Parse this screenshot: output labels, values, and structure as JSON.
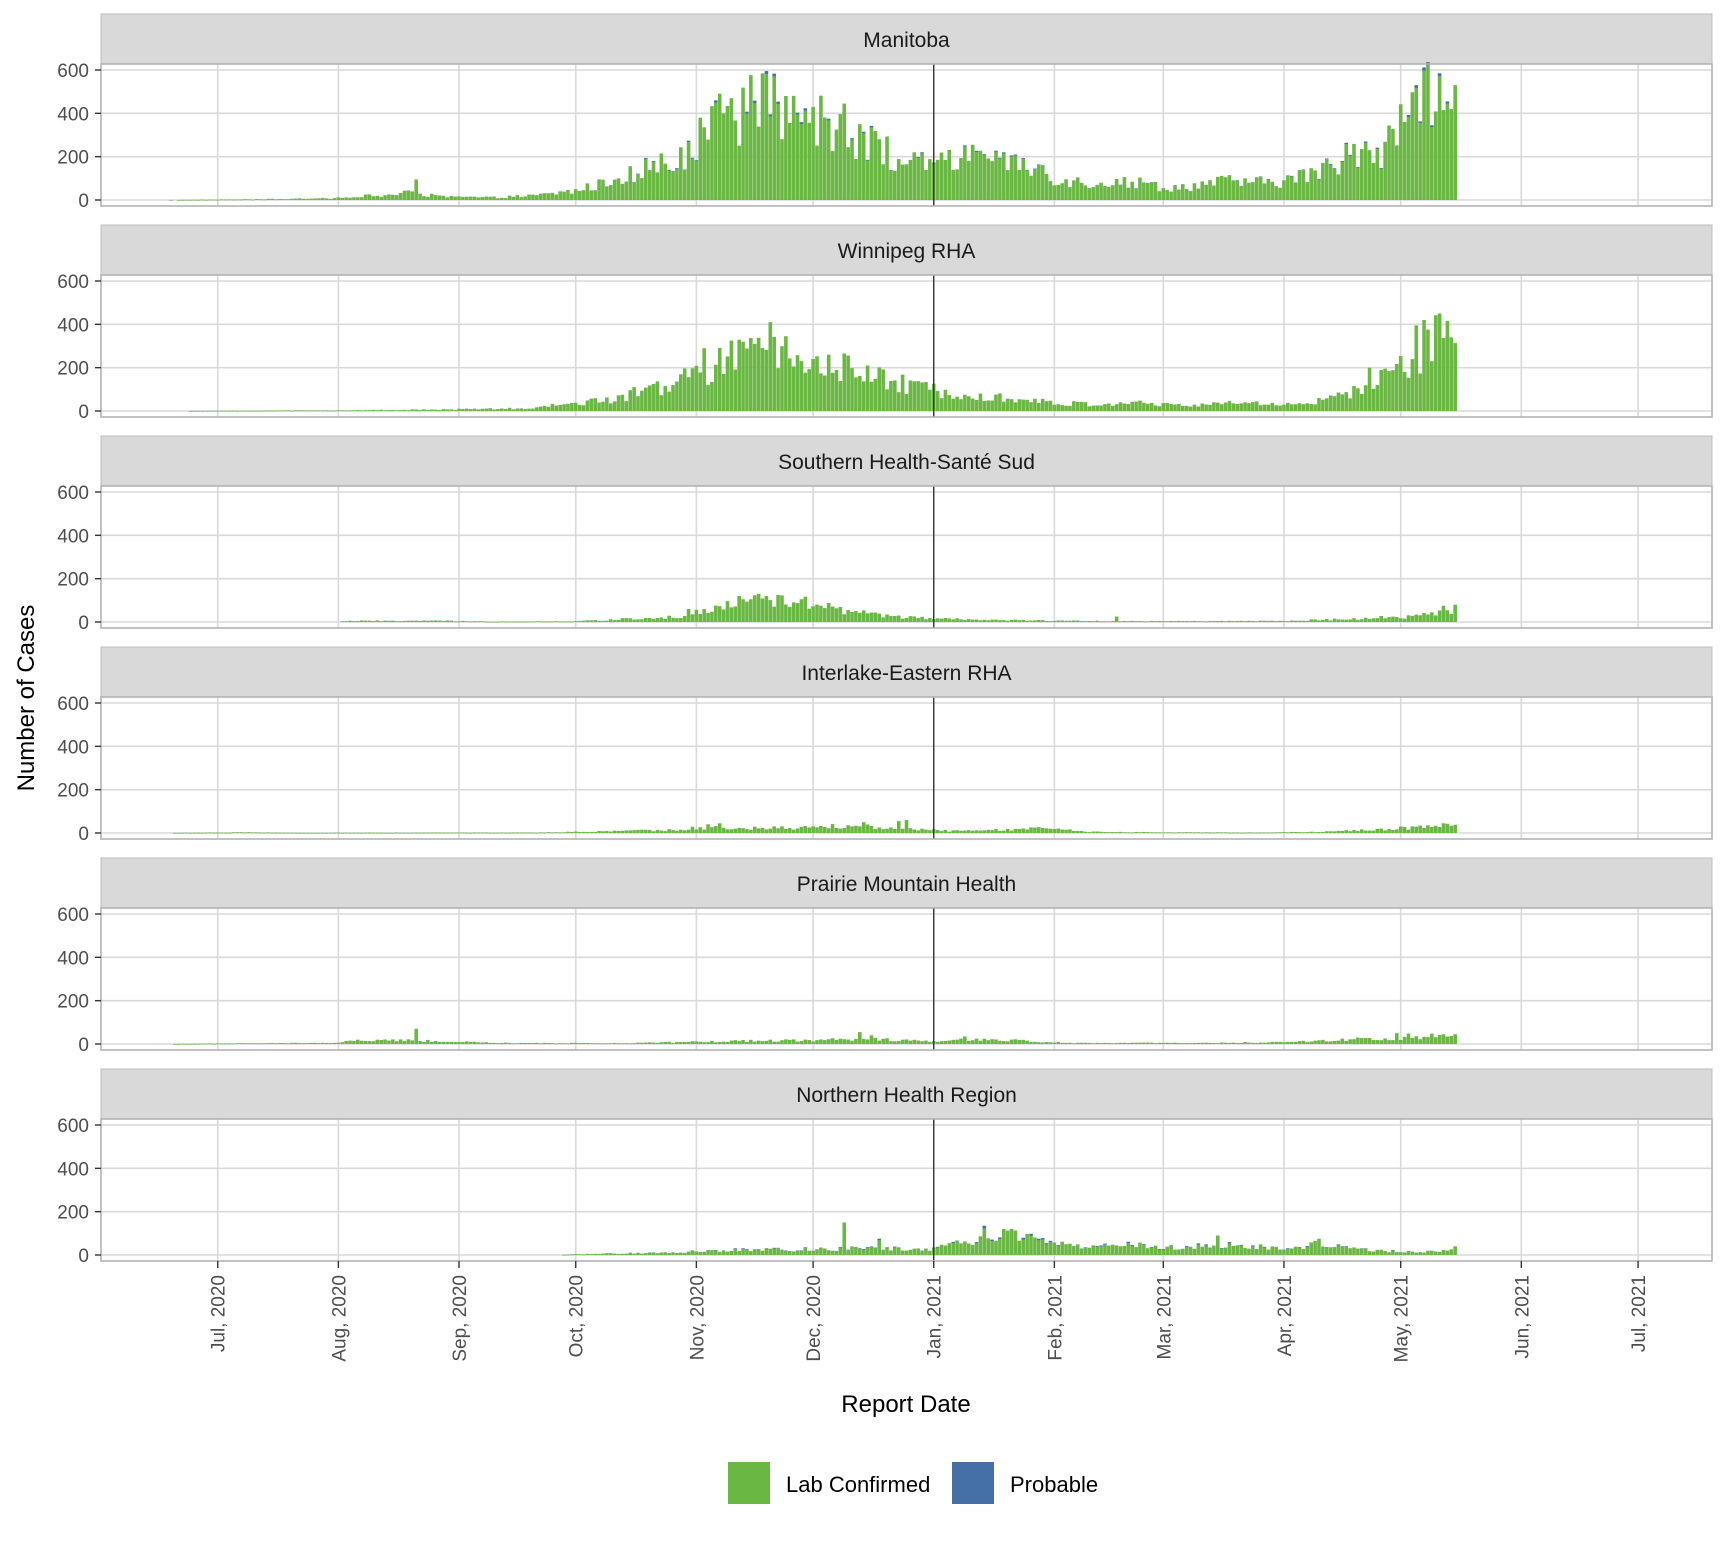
{
  "chart_data": {
    "type": "bar",
    "stacked": true,
    "xlabel": "Report Date",
    "ylabel": "Number of Cases",
    "ylim": [
      0,
      600
    ],
    "y_ticks": [
      0,
      200,
      400,
      600
    ],
    "x_range": [
      "2020-06-01",
      "2021-07-20"
    ],
    "x_ticks": [
      {
        "date": "2020-07-01",
        "label": "Jul, 2020"
      },
      {
        "date": "2020-08-01",
        "label": "Aug, 2020"
      },
      {
        "date": "2020-09-01",
        "label": "Sep, 2020"
      },
      {
        "date": "2020-10-01",
        "label": "Oct, 2020"
      },
      {
        "date": "2020-11-01",
        "label": "Nov, 2020"
      },
      {
        "date": "2020-12-01",
        "label": "Dec, 2020"
      },
      {
        "date": "2021-01-01",
        "label": "Jan, 2021"
      },
      {
        "date": "2021-02-01",
        "label": "Feb, 2021"
      },
      {
        "date": "2021-03-01",
        "label": "Mar, 2021"
      },
      {
        "date": "2021-04-01",
        "label": "Apr, 2021"
      },
      {
        "date": "2021-05-01",
        "label": "May, 2021"
      },
      {
        "date": "2021-06-01",
        "label": "Jun, 2021"
      },
      {
        "date": "2021-07-01",
        "label": "Jul, 2021"
      }
    ],
    "reference_line_date": "2021-01-01",
    "grid": true,
    "legend_position": "bottom",
    "legend": [
      {
        "label": "Lab Confirmed",
        "color": "#6ab743"
      },
      {
        "label": "Probable",
        "color": "#4470a7"
      }
    ],
    "date_start": "2020-06-15",
    "date_end": "2021-05-15",
    "panels": [
      {
        "name": "Manitoba",
        "keypoints": [
          [
            "2020-06-15",
            0
          ],
          [
            "2020-07-10",
            3
          ],
          [
            "2020-07-31",
            8
          ],
          [
            "2020-08-05",
            20
          ],
          [
            "2020-08-12",
            18
          ],
          [
            "2020-08-18",
            35
          ],
          [
            "2020-08-28",
            15
          ],
          [
            "2020-09-10",
            12
          ],
          [
            "2020-09-20",
            20
          ],
          [
            "2020-09-30",
            40
          ],
          [
            "2020-10-08",
            75
          ],
          [
            "2020-10-14",
            120
          ],
          [
            "2020-10-20",
            155
          ],
          [
            "2020-10-26",
            170
          ],
          [
            "2020-11-02",
            300
          ],
          [
            "2020-11-08",
            370
          ],
          [
            "2020-11-14",
            420
          ],
          [
            "2020-11-20",
            430
          ],
          [
            "2020-11-26",
            410
          ],
          [
            "2020-12-02",
            370
          ],
          [
            "2020-12-08",
            330
          ],
          [
            "2020-12-14",
            275
          ],
          [
            "2020-12-20",
            215
          ],
          [
            "2020-12-26",
            165
          ],
          [
            "2021-01-02",
            160
          ],
          [
            "2021-01-07",
            190
          ],
          [
            "2021-01-15",
            170
          ],
          [
            "2021-01-24",
            155
          ],
          [
            "2021-01-31",
            110
          ],
          [
            "2021-02-08",
            80
          ],
          [
            "2021-02-18",
            85
          ],
          [
            "2021-02-25",
            75
          ],
          [
            "2021-03-03",
            55
          ],
          [
            "2021-03-10",
            70
          ],
          [
            "2021-03-18",
            88
          ],
          [
            "2021-03-27",
            78
          ],
          [
            "2021-04-05",
            105
          ],
          [
            "2021-04-12",
            145
          ],
          [
            "2021-04-20",
            225
          ],
          [
            "2021-04-27",
            240
          ],
          [
            "2021-05-03",
            430
          ],
          [
            "2021-05-08",
            510
          ],
          [
            "2021-05-15",
            500
          ]
        ],
        "peaks": [
          [
            "2020-08-21",
            95
          ],
          [
            "2020-10-15",
            155
          ],
          [
            "2020-11-02",
            380
          ],
          [
            "2020-11-06",
            460
          ],
          [
            "2020-11-08",
            400
          ],
          [
            "2020-11-10",
            470
          ],
          [
            "2020-11-19",
            595
          ],
          [
            "2020-11-24",
            480
          ],
          [
            "2020-12-01",
            430
          ],
          [
            "2020-12-05",
            375
          ],
          [
            "2020-12-09",
            445
          ],
          [
            "2020-12-13",
            350
          ],
          [
            "2021-01-04",
            185
          ],
          [
            "2021-01-11",
            255
          ],
          [
            "2021-01-19",
            220
          ],
          [
            "2021-01-22",
            210
          ],
          [
            "2021-01-29",
            160
          ],
          [
            "2021-04-16",
            180
          ],
          [
            "2021-04-22",
            270
          ],
          [
            "2021-05-05",
            530
          ],
          [
            "2021-05-09",
            345
          ],
          [
            "2021-05-11",
            585
          ],
          [
            "2021-05-13",
            455
          ],
          [
            "2021-05-15",
            530
          ]
        ],
        "probable_share": 0.012
      },
      {
        "name": "Winnipeg RHA",
        "keypoints": [
          [
            "2020-06-15",
            0
          ],
          [
            "2020-07-31",
            3
          ],
          [
            "2020-08-15",
            5
          ],
          [
            "2020-09-02",
            8
          ],
          [
            "2020-09-20",
            12
          ],
          [
            "2020-10-01",
            38
          ],
          [
            "2020-10-10",
            55
          ],
          [
            "2020-10-18",
            90
          ],
          [
            "2020-10-26",
            125
          ],
          [
            "2020-11-02",
            180
          ],
          [
            "2020-11-10",
            235
          ],
          [
            "2020-11-18",
            255
          ],
          [
            "2020-11-26",
            240
          ],
          [
            "2020-12-04",
            210
          ],
          [
            "2020-12-12",
            185
          ],
          [
            "2020-12-20",
            140
          ],
          [
            "2020-12-28",
            105
          ],
          [
            "2021-01-02",
            95
          ],
          [
            "2021-01-10",
            85
          ],
          [
            "2021-01-20",
            60
          ],
          [
            "2021-01-30",
            40
          ],
          [
            "2021-02-10",
            30
          ],
          [
            "2021-02-20",
            40
          ],
          [
            "2021-03-05",
            25
          ],
          [
            "2021-03-20",
            38
          ],
          [
            "2021-03-31",
            32
          ],
          [
            "2021-04-10",
            45
          ],
          [
            "2021-04-20",
            90
          ],
          [
            "2021-04-27",
            150
          ],
          [
            "2021-05-04",
            220
          ],
          [
            "2021-05-08",
            330
          ],
          [
            "2021-05-15",
            320
          ]
        ],
        "peaks": [
          [
            "2020-10-16",
            110
          ],
          [
            "2020-10-21",
            125
          ],
          [
            "2020-11-03",
            290
          ],
          [
            "2020-11-10",
            325
          ],
          [
            "2020-11-13",
            320
          ],
          [
            "2020-11-20",
            410
          ],
          [
            "2020-11-24",
            345
          ],
          [
            "2020-12-01",
            240
          ],
          [
            "2020-12-05",
            260
          ],
          [
            "2021-04-23",
            200
          ],
          [
            "2021-05-05",
            395
          ],
          [
            "2021-05-07",
            420
          ],
          [
            "2021-05-09",
            230
          ],
          [
            "2021-05-11",
            450
          ],
          [
            "2021-05-14",
            340
          ]
        ],
        "probable_share": 0
      },
      {
        "name": "Southern Health-Santé Sud",
        "keypoints": [
          [
            "2020-06-15",
            0
          ],
          [
            "2020-08-01",
            0
          ],
          [
            "2020-08-03",
            5
          ],
          [
            "2020-08-25",
            6
          ],
          [
            "2020-09-10",
            2
          ],
          [
            "2020-09-30",
            3
          ],
          [
            "2020-10-10",
            10
          ],
          [
            "2020-10-20",
            20
          ],
          [
            "2020-10-28",
            25
          ],
          [
            "2020-11-02",
            45
          ],
          [
            "2020-11-10",
            75
          ],
          [
            "2020-11-20",
            105
          ],
          [
            "2020-11-28",
            90
          ],
          [
            "2020-12-06",
            62
          ],
          [
            "2020-12-14",
            40
          ],
          [
            "2020-12-22",
            25
          ],
          [
            "2021-01-01",
            15
          ],
          [
            "2021-01-15",
            9
          ],
          [
            "2021-02-01",
            6
          ],
          [
            "2021-02-20",
            4
          ],
          [
            "2021-03-10",
            4
          ],
          [
            "2021-03-31",
            5
          ],
          [
            "2021-04-15",
            12
          ],
          [
            "2021-04-25",
            20
          ],
          [
            "2021-05-05",
            25
          ],
          [
            "2021-05-15",
            60
          ]
        ],
        "peaks": [
          [
            "2020-10-30",
            60
          ],
          [
            "2020-11-12",
            120
          ],
          [
            "2020-11-17",
            130
          ],
          [
            "2020-11-19",
            120
          ],
          [
            "2020-11-22",
            125
          ],
          [
            "2020-12-03",
            75
          ],
          [
            "2021-02-17",
            25
          ],
          [
            "2021-05-12",
            75
          ],
          [
            "2021-05-15",
            80
          ]
        ],
        "probable_share": 0
      },
      {
        "name": "Interlake-Eastern RHA",
        "keypoints": [
          [
            "2020-06-15",
            0
          ],
          [
            "2020-07-08",
            3
          ],
          [
            "2020-07-20",
            1
          ],
          [
            "2020-09-20",
            2
          ],
          [
            "2020-10-10",
            8
          ],
          [
            "2020-10-25",
            14
          ],
          [
            "2020-11-02",
            25
          ],
          [
            "2020-11-15",
            22
          ],
          [
            "2020-11-30",
            25
          ],
          [
            "2020-12-12",
            35
          ],
          [
            "2020-12-25",
            18
          ],
          [
            "2021-01-05",
            10
          ],
          [
            "2021-01-20",
            14
          ],
          [
            "2021-01-30",
            22
          ],
          [
            "2021-02-10",
            6
          ],
          [
            "2021-03-01",
            3
          ],
          [
            "2021-03-25",
            2
          ],
          [
            "2021-04-10",
            5
          ],
          [
            "2021-04-22",
            15
          ],
          [
            "2021-05-05",
            25
          ],
          [
            "2021-05-15",
            38
          ]
        ],
        "peaks": [
          [
            "2020-11-04",
            40
          ],
          [
            "2020-11-07",
            45
          ],
          [
            "2020-12-14",
            50
          ],
          [
            "2020-12-23",
            55
          ],
          [
            "2020-12-25",
            60
          ],
          [
            "2021-01-27",
            25
          ],
          [
            "2021-05-12",
            45
          ],
          [
            "2021-05-15",
            38
          ]
        ],
        "probable_share": 0
      },
      {
        "name": "Prairie Mountain Health",
        "keypoints": [
          [
            "2020-06-15",
            0
          ],
          [
            "2020-07-08",
            3
          ],
          [
            "2020-07-31",
            5
          ],
          [
            "2020-08-05",
            15
          ],
          [
            "2020-08-20",
            16
          ],
          [
            "2020-08-31",
            10
          ],
          [
            "2020-09-15",
            4
          ],
          [
            "2020-10-15",
            4
          ],
          [
            "2020-11-01",
            10
          ],
          [
            "2020-11-15",
            15
          ],
          [
            "2020-12-01",
            18
          ],
          [
            "2020-12-15",
            25
          ],
          [
            "2020-12-31",
            12
          ],
          [
            "2021-01-10",
            20
          ],
          [
            "2021-01-25",
            15
          ],
          [
            "2021-02-05",
            5
          ],
          [
            "2021-03-15",
            5
          ],
          [
            "2021-04-05",
            10
          ],
          [
            "2021-04-20",
            22
          ],
          [
            "2021-05-05",
            32
          ],
          [
            "2021-05-15",
            40
          ]
        ],
        "peaks": [
          [
            "2020-08-21",
            70
          ],
          [
            "2020-12-13",
            55
          ],
          [
            "2020-12-16",
            40
          ],
          [
            "2021-01-09",
            35
          ],
          [
            "2021-04-30",
            50
          ],
          [
            "2021-05-03",
            48
          ],
          [
            "2021-05-15",
            45
          ]
        ],
        "probable_share": 0
      },
      {
        "name": "Northern Health Region",
        "keypoints": [
          [
            "2020-06-15",
            0
          ],
          [
            "2020-09-27",
            0
          ],
          [
            "2020-09-30",
            3
          ],
          [
            "2020-10-15",
            8
          ],
          [
            "2020-10-28",
            12
          ],
          [
            "2020-11-05",
            22
          ],
          [
            "2020-11-20",
            25
          ],
          [
            "2020-12-05",
            28
          ],
          [
            "2020-12-20",
            30
          ],
          [
            "2020-12-31",
            22
          ],
          [
            "2021-01-08",
            55
          ],
          [
            "2021-01-15",
            80
          ],
          [
            "2021-01-22",
            85
          ],
          [
            "2021-01-31",
            55
          ],
          [
            "2021-02-10",
            35
          ],
          [
            "2021-02-20",
            55
          ],
          [
            "2021-02-28",
            30
          ],
          [
            "2021-03-10",
            40
          ],
          [
            "2021-03-20",
            45
          ],
          [
            "2021-03-31",
            30
          ],
          [
            "2021-04-10",
            50
          ],
          [
            "2021-04-25",
            20
          ],
          [
            "2021-05-05",
            12
          ],
          [
            "2021-05-15",
            20
          ]
        ],
        "peaks": [
          [
            "2020-12-09",
            150
          ],
          [
            "2020-12-18",
            75
          ],
          [
            "2021-01-14",
            135
          ],
          [
            "2021-01-19",
            120
          ],
          [
            "2021-01-21",
            120
          ],
          [
            "2021-03-15",
            90
          ],
          [
            "2021-04-10",
            75
          ],
          [
            "2021-05-15",
            40
          ]
        ],
        "probable_share": 0.05
      }
    ]
  }
}
